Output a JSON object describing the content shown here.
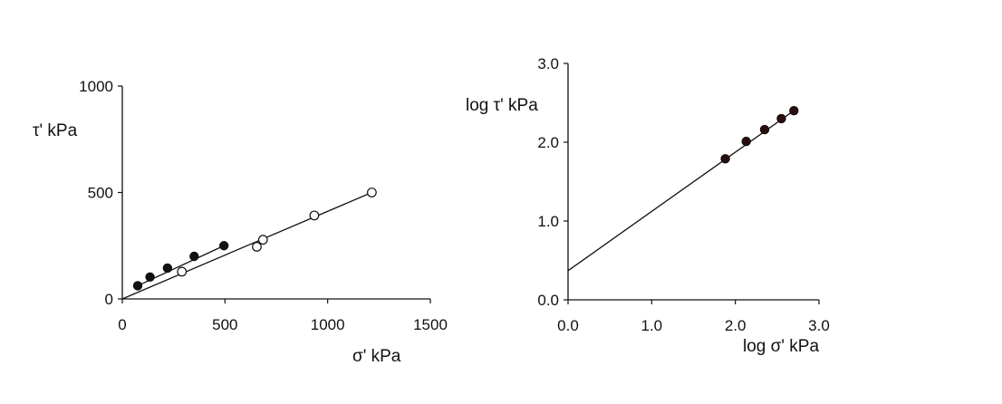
{
  "chart_data": [
    {
      "type": "scatter",
      "title": "",
      "xlabel": "σ' kPa",
      "ylabel": "τ' kPa",
      "xlim": [
        0,
        1500
      ],
      "ylim": [
        0,
        1000
      ],
      "xticks": [
        0,
        500,
        1000,
        1500
      ],
      "yticks": [
        0,
        500,
        1000
      ],
      "xtick_labels": [
        "0",
        "500",
        "1000",
        "1500"
      ],
      "ytick_labels": [
        "0",
        "500",
        "1000"
      ],
      "grid": false,
      "series": [
        {
          "marker": "filled-circle",
          "color": "#111111",
          "x": [
            75,
            135,
            220,
            350,
            495
          ],
          "y": [
            62,
            103,
            145,
            200,
            250
          ],
          "fit_line": {
            "x": [
              75,
              495
            ],
            "y": [
              62,
              250
            ]
          }
        },
        {
          "marker": "open-circle",
          "color": "#111111",
          "x": [
            290,
            655,
            685,
            935,
            1215
          ],
          "y": [
            128,
            245,
            278,
            392,
            500
          ],
          "fit_line": {
            "x": [
              0,
              1215
            ],
            "y": [
              0,
              500
            ]
          }
        }
      ]
    },
    {
      "type": "scatter",
      "title": "",
      "xlabel": "log σ' kPa",
      "ylabel": "log τ' kPa",
      "xlim": [
        0,
        3
      ],
      "ylim": [
        0,
        3
      ],
      "xticks": [
        0,
        1,
        2,
        3
      ],
      "yticks": [
        0,
        1,
        2,
        3
      ],
      "xtick_labels": [
        "0.0",
        "1.0",
        "2.0",
        "3.0"
      ],
      "ytick_labels": [
        "0.0",
        "1.0",
        "2.0",
        "3.0"
      ],
      "grid": false,
      "series": [
        {
          "marker": "filled-circle",
          "color": "#2a0d0d",
          "x": [
            1.88,
            2.13,
            2.35,
            2.55,
            2.7
          ],
          "y": [
            1.79,
            2.01,
            2.16,
            2.3,
            2.4
          ],
          "fit_line": {
            "x": [
              0,
              2.7
            ],
            "y": [
              0.37,
              2.4
            ]
          }
        }
      ]
    }
  ]
}
